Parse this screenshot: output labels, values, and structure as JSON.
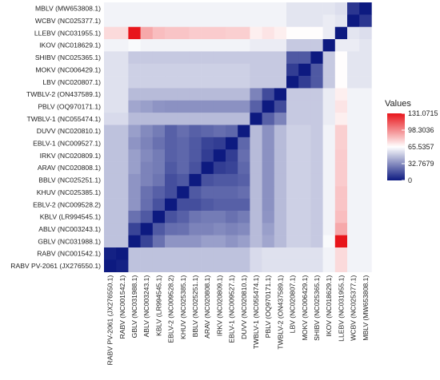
{
  "chart_data": {
    "type": "heatmap",
    "legend": {
      "title": "Values",
      "ticks": [
        0,
        32.7679,
        65.5357,
        98.3036,
        131.0715
      ],
      "tick_labels": [
        "0",
        "32.7679",
        "65.5357",
        "98.3036",
        "131.0715"
      ],
      "placement": "right"
    },
    "colors": {
      "low": "#0d1a80",
      "mid": "#ffffff",
      "high": "#e8151b"
    },
    "value_range": [
      0,
      131.0715
    ],
    "grid": false,
    "rows_top_to_bottom": [
      "MBLV (MW653808.1)",
      "WCBV (NC025377.1)",
      "LLEBV (NC031955.1)",
      "IKOV (NC018629.1)",
      "SHIBV (NC025365.1)",
      "MOKV (NC006429.1)",
      "LBV (NC020807.1)",
      "TWBLV-2 (ON437589.1)",
      "PBLV (OQ970171.1)",
      "TWBLV-1 (NC055474.1)",
      "DUVV (NC020810.1)",
      "EBLV-1 (NC009527.1)",
      "IRKV (NC020809.1)",
      "ARAV (NC020808.1)",
      "BBLV (NC025251.1)",
      "KHUV (NC025385.1)",
      "EBLV-2 (NC009528.2)",
      "KBLV (LR994545.1)",
      "ABLV (NC003243.1)",
      "GBLV (NC031988.1)",
      "RABV (NC001542.1)",
      "RABV PV-2061 (JX276550.1)"
    ],
    "columns_left_to_right": [
      "RABV PV-2061 (JX276550.1)",
      "RABV (NC001542.1)",
      "GBLV (NC031988.1)",
      "ABLV (NC003243.1)",
      "KBLV (LR994545.1)",
      "EBLV-2 (NC009528.2)",
      "KHUV (NC025385.1)",
      "BBLV (NC025251.1)",
      "ARAV (NC020808.1)",
      "IRKV (NC020809.1)",
      "EBLV-1 (NC009527.1)",
      "DUVV (NC020810.1)",
      "TWBLV-1 (NC055474.1)",
      "PBLV (OQ970171.1)",
      "TWBLV-2 (ON437589.1)",
      "LBV (NC020807.1)",
      "MOKV (NC006429.1)",
      "SHIBV (NC025365.1)",
      "IKOV (NC018629.1)",
      "LLEBV (NC031955.1)",
      "WCBV (NC025377.1)",
      "MBLV (MW653808.1)"
    ],
    "values": [
      [
        62,
        62,
        62,
        62,
        62,
        62,
        62,
        62,
        62,
        62,
        62,
        62,
        62,
        62,
        62,
        58,
        58,
        58,
        58,
        56,
        8,
        0
      ],
      [
        62,
        62,
        62,
        62,
        62,
        62,
        62,
        62,
        62,
        62,
        62,
        62,
        62,
        62,
        62,
        58,
        58,
        58,
        60,
        58,
        0,
        8
      ],
      [
        76,
        76,
        131,
        90,
        84,
        82,
        82,
        80,
        80,
        80,
        79,
        79,
        70,
        73,
        70,
        66,
        66,
        66,
        60,
        0,
        58,
        56
      ],
      [
        62,
        62,
        64,
        62,
        62,
        62,
        62,
        62,
        62,
        62,
        62,
        62,
        60,
        60,
        60,
        50,
        50,
        50,
        0,
        60,
        60,
        58
      ],
      [
        57,
        57,
        50,
        50,
        50,
        50,
        50,
        50,
        50,
        50,
        50,
        50,
        50,
        50,
        50,
        18,
        18,
        0,
        50,
        66,
        58,
        58
      ],
      [
        57,
        57,
        52,
        52,
        52,
        52,
        52,
        52,
        52,
        52,
        52,
        52,
        50,
        50,
        50,
        10,
        0,
        18,
        50,
        66,
        58,
        58
      ],
      [
        57,
        57,
        52,
        52,
        52,
        52,
        52,
        52,
        52,
        52,
        52,
        52,
        50,
        50,
        50,
        0,
        10,
        18,
        50,
        66,
        58,
        58
      ],
      [
        57,
        57,
        46,
        46,
        46,
        46,
        46,
        46,
        46,
        46,
        46,
        46,
        30,
        14,
        0,
        50,
        50,
        50,
        60,
        70,
        62,
        62
      ],
      [
        57,
        57,
        40,
        38,
        35,
        34,
        34,
        34,
        34,
        34,
        34,
        34,
        20,
        0,
        14,
        50,
        50,
        50,
        60,
        73,
        62,
        62
      ],
      [
        55,
        55,
        46,
        46,
        46,
        46,
        46,
        46,
        46,
        46,
        46,
        46,
        0,
        20,
        30,
        50,
        50,
        50,
        60,
        70,
        62,
        62
      ],
      [
        48,
        48,
        38,
        32,
        28,
        20,
        24,
        20,
        22,
        24,
        22,
        0,
        46,
        34,
        46,
        52,
        52,
        50,
        62,
        79,
        62,
        62
      ],
      [
        48,
        48,
        35,
        30,
        25,
        20,
        22,
        18,
        12,
        10,
        0,
        22,
        46,
        34,
        46,
        52,
        52,
        50,
        62,
        79,
        62,
        62
      ],
      [
        48,
        48,
        38,
        32,
        28,
        20,
        22,
        18,
        10,
        0,
        10,
        24,
        46,
        34,
        46,
        52,
        52,
        50,
        62,
        80,
        62,
        62
      ],
      [
        48,
        48,
        38,
        30,
        28,
        18,
        22,
        16,
        0,
        10,
        12,
        22,
        46,
        34,
        46,
        52,
        52,
        50,
        62,
        80,
        62,
        62
      ],
      [
        48,
        48,
        35,
        30,
        26,
        15,
        18,
        0,
        16,
        18,
        18,
        20,
        46,
        34,
        46,
        52,
        52,
        50,
        62,
        80,
        62,
        62
      ],
      [
        48,
        48,
        35,
        25,
        20,
        15,
        0,
        18,
        22,
        22,
        22,
        24,
        46,
        34,
        46,
        52,
        52,
        50,
        62,
        82,
        62,
        62
      ],
      [
        48,
        48,
        35,
        24,
        16,
        0,
        15,
        15,
        18,
        20,
        20,
        20,
        46,
        34,
        46,
        52,
        52,
        50,
        62,
        82,
        62,
        62
      ],
      [
        48,
        48,
        25,
        18,
        0,
        16,
        20,
        26,
        28,
        28,
        25,
        28,
        46,
        35,
        46,
        52,
        52,
        50,
        62,
        84,
        62,
        62
      ],
      [
        48,
        48,
        12,
        0,
        18,
        24,
        25,
        30,
        30,
        32,
        30,
        32,
        46,
        38,
        46,
        52,
        52,
        50,
        62,
        90,
        62,
        62
      ],
      [
        48,
        48,
        0,
        12,
        25,
        35,
        35,
        35,
        38,
        38,
        35,
        38,
        46,
        40,
        46,
        52,
        52,
        50,
        64,
        131,
        62,
        62
      ],
      [
        2,
        0,
        48,
        48,
        48,
        48,
        48,
        48,
        48,
        48,
        48,
        48,
        55,
        57,
        57,
        57,
        57,
        57,
        62,
        76,
        62,
        62
      ],
      [
        0,
        2,
        48,
        48,
        48,
        48,
        48,
        48,
        48,
        48,
        48,
        48,
        55,
        57,
        57,
        57,
        57,
        57,
        62,
        76,
        62,
        62
      ]
    ]
  }
}
